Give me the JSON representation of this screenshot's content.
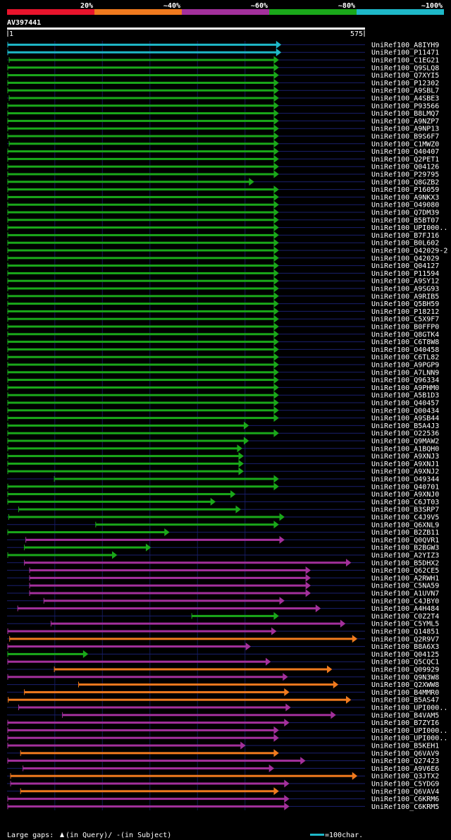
{
  "chart_data": {
    "type": "alignment-overview",
    "identity_legend": [
      {
        "label": "20%",
        "color": "#e8142c"
      },
      {
        "label": "~40%",
        "color": "#f07a1e"
      },
      {
        "label": "~60%",
        "color": "#a3309c"
      },
      {
        "label": "~80%",
        "color": "#1aa81a"
      },
      {
        "label": "~100%",
        "color": "#1eb8c8"
      }
    ],
    "query": {
      "name": "AV397441",
      "start_label": "1",
      "end_label": "575",
      "length": 575
    },
    "hits": [
      {
        "name": "UniRef100_A8IYH9",
        "s": 1,
        "e": 575,
        "id": "~100%"
      },
      {
        "name": "UniRef100_P11471",
        "s": 1,
        "e": 575,
        "id": "~100%"
      },
      {
        "name": "UniRef100_C1EG21",
        "s": 4,
        "e": 570,
        "id": "~80%"
      },
      {
        "name": "UniRef100_Q9SLQ8",
        "s": 1,
        "e": 570,
        "id": "~80%"
      },
      {
        "name": "UniRef100_Q7XYI5",
        "s": 1,
        "e": 570,
        "id": "~80%"
      },
      {
        "name": "UniRef100_P12302",
        "s": 1,
        "e": 570,
        "id": "~80%"
      },
      {
        "name": "UniRef100_A9SBL7",
        "s": 1,
        "e": 570,
        "id": "~80%"
      },
      {
        "name": "UniRef100_A4SBE3",
        "s": 4,
        "e": 570,
        "id": "~80%"
      },
      {
        "name": "UniRef100_P93566",
        "s": 1,
        "e": 570,
        "id": "~80%"
      },
      {
        "name": "UniRef100_B8LMQ7",
        "s": 1,
        "e": 570,
        "id": "~80%"
      },
      {
        "name": "UniRef100_A9NZP7",
        "s": 1,
        "e": 570,
        "id": "~80%"
      },
      {
        "name": "UniRef100_A9NP13",
        "s": 1,
        "e": 570,
        "id": "~80%"
      },
      {
        "name": "UniRef100_B9S6F7",
        "s": 1,
        "e": 570,
        "id": "~80%"
      },
      {
        "name": "UniRef100_C1MWZ0",
        "s": 4,
        "e": 570,
        "id": "~80%"
      },
      {
        "name": "UniRef100_Q40407",
        "s": 1,
        "e": 570,
        "id": "~80%"
      },
      {
        "name": "UniRef100_Q2PET1",
        "s": 1,
        "e": 570,
        "id": "~80%"
      },
      {
        "name": "UniRef100_Q04126",
        "s": 1,
        "e": 570,
        "id": "~80%"
      },
      {
        "name": "UniRef100_P29795",
        "s": 1,
        "e": 570,
        "id": "~80%"
      },
      {
        "name": "UniRef100_Q8GZB2",
        "s": 1,
        "e": 518,
        "id": "~80%"
      },
      {
        "name": "UniRef100_P16059",
        "s": 1,
        "e": 570,
        "id": "~80%"
      },
      {
        "name": "UniRef100_A9NKX3",
        "s": 1,
        "e": 570,
        "id": "~80%"
      },
      {
        "name": "UniRef100_O49080",
        "s": 1,
        "e": 570,
        "id": "~80%"
      },
      {
        "name": "UniRef100_Q7DM39",
        "s": 1,
        "e": 570,
        "id": "~80%"
      },
      {
        "name": "UniRef100_B5BT07",
        "s": 1,
        "e": 570,
        "id": "~80%"
      },
      {
        "name": "UniRef100_UPI000..",
        "s": 1,
        "e": 570,
        "id": "~80%"
      },
      {
        "name": "UniRef100_B7FJ16",
        "s": 1,
        "e": 570,
        "id": "~80%"
      },
      {
        "name": "UniRef100_B0L602",
        "s": 1,
        "e": 570,
        "id": "~80%"
      },
      {
        "name": "UniRef100_Q42029-2",
        "s": 1,
        "e": 570,
        "id": "~80%"
      },
      {
        "name": "UniRef100_Q42029",
        "s": 1,
        "e": 570,
        "id": "~80%"
      },
      {
        "name": "UniRef100_Q04127",
        "s": 1,
        "e": 570,
        "id": "~80%"
      },
      {
        "name": "UniRef100_P11594",
        "s": 1,
        "e": 570,
        "id": "~80%"
      },
      {
        "name": "UniRef100_A9SY12",
        "s": 1,
        "e": 570,
        "id": "~80%"
      },
      {
        "name": "UniRef100_A9SG93",
        "s": 1,
        "e": 570,
        "id": "~80%"
      },
      {
        "name": "UniRef100_A9RIB5",
        "s": 1,
        "e": 570,
        "id": "~80%"
      },
      {
        "name": "UniRef100_Q5BH59",
        "s": 1,
        "e": 570,
        "id": "~80%"
      },
      {
        "name": "UniRef100_P18212",
        "s": 1,
        "e": 570,
        "id": "~80%"
      },
      {
        "name": "UniRef100_C5X9F7",
        "s": 1,
        "e": 570,
        "id": "~80%"
      },
      {
        "name": "UniRef100_B0FFP0",
        "s": 1,
        "e": 570,
        "id": "~80%"
      },
      {
        "name": "UniRef100_Q8GTK4",
        "s": 1,
        "e": 570,
        "id": "~80%"
      },
      {
        "name": "UniRef100_C6T8W8",
        "s": 1,
        "e": 570,
        "id": "~80%"
      },
      {
        "name": "UniRef100_O40458",
        "s": 1,
        "e": 570,
        "id": "~80%"
      },
      {
        "name": "UniRef100_C6TL82",
        "s": 1,
        "e": 570,
        "id": "~80%"
      },
      {
        "name": "UniRef100_A9PGP9",
        "s": 1,
        "e": 570,
        "id": "~80%"
      },
      {
        "name": "UniRef100_A7LNN9",
        "s": 1,
        "e": 570,
        "id": "~80%"
      },
      {
        "name": "UniRef100_Q96334",
        "s": 1,
        "e": 570,
        "id": "~80%"
      },
      {
        "name": "UniRef100_A9PHM0",
        "s": 1,
        "e": 570,
        "id": "~80%"
      },
      {
        "name": "UniRef100_A5B1D3",
        "s": 1,
        "e": 570,
        "id": "~80%"
      },
      {
        "name": "UniRef100_Q40457",
        "s": 1,
        "e": 570,
        "id": "~80%"
      },
      {
        "name": "UniRef100_Q00434",
        "s": 1,
        "e": 570,
        "id": "~80%"
      },
      {
        "name": "UniRef100_A9SB44",
        "s": 1,
        "e": 570,
        "id": "~80%"
      },
      {
        "name": "UniRef100_B5A4J3",
        "s": 1,
        "e": 507,
        "id": "~80%"
      },
      {
        "name": "UniRef100_O22536",
        "s": 1,
        "e": 570,
        "id": "~80%"
      },
      {
        "name": "UniRef100_Q9MAW2",
        "s": 1,
        "e": 507,
        "id": "~80%"
      },
      {
        "name": "UniRef100_A1BQH0",
        "s": 1,
        "e": 493,
        "id": "~80%"
      },
      {
        "name": "UniRef100_A9XNJ3",
        "s": 1,
        "e": 496,
        "id": "~80%"
      },
      {
        "name": "UniRef100_A9XNJ1",
        "s": 1,
        "e": 496,
        "id": "~80%"
      },
      {
        "name": "UniRef100_A9XNJ2",
        "s": 1,
        "e": 496,
        "id": "~80%"
      },
      {
        "name": "UniRef100_O49344",
        "s": 99,
        "e": 570,
        "id": "~80%"
      },
      {
        "name": "UniRef100_Q40701",
        "s": 1,
        "e": 570,
        "id": "~80%"
      },
      {
        "name": "UniRef100_A9XNJ0",
        "s": 1,
        "e": 479,
        "id": "~80%"
      },
      {
        "name": "UniRef100_C6JT03",
        "s": 1,
        "e": 437,
        "id": "~80%"
      },
      {
        "name": "UniRef100_B3SRP7",
        "s": 24,
        "e": 490,
        "id": "~80%"
      },
      {
        "name": "UniRef100_C4J9V5",
        "s": 3,
        "e": 582,
        "id": "~80%"
      },
      {
        "name": "UniRef100_Q6XNL9",
        "s": 186,
        "e": 570,
        "id": "~80%"
      },
      {
        "name": "UniRef100_B2ZB11",
        "s": 1,
        "e": 340,
        "id": "~80%"
      },
      {
        "name": "UniRef100_Q0QVR1",
        "s": 39,
        "e": 582,
        "id": "~60%"
      },
      {
        "name": "UniRef100_B2BGW3",
        "s": 36,
        "e": 301,
        "id": "~80%"
      },
      {
        "name": "UniRef100_A2YIZ3",
        "s": 1,
        "e": 230,
        "id": "~80%"
      },
      {
        "name": "UniRef100_B5DHX2",
        "s": 36,
        "e": 722,
        "id": "~60%"
      },
      {
        "name": "UniRef100_Q62CE5",
        "s": 47,
        "e": 637,
        "id": "~60%"
      },
      {
        "name": "UniRef100_A2RWH1",
        "s": 47,
        "e": 637,
        "id": "~60%"
      },
      {
        "name": "UniRef100_C5NA59",
        "s": 47,
        "e": 637,
        "id": "~60%"
      },
      {
        "name": "UniRef100_A1UVN7",
        "s": 47,
        "e": 637,
        "id": "~60%"
      },
      {
        "name": "UniRef100_C4JBY0",
        "s": 77,
        "e": 582,
        "id": "~60%"
      },
      {
        "name": "UniRef100_A4H484",
        "s": 22,
        "e": 658,
        "id": "~60%"
      },
      {
        "name": "UniRef100_C0Z2T4",
        "s": 388,
        "e": 570,
        "id": "~80%"
      },
      {
        "name": "UniRef100_C5YML5",
        "s": 92,
        "e": 710,
        "id": "~60%"
      },
      {
        "name": "UniRef100_Q14851",
        "s": 1,
        "e": 565,
        "id": "~60%"
      },
      {
        "name": "UniRef100_Q2R9V7",
        "s": 5,
        "e": 735,
        "id": "~40%"
      },
      {
        "name": "UniRef100_B8A6X3",
        "s": 1,
        "e": 511,
        "id": "~60%"
      },
      {
        "name": "UniRef100_Q04125",
        "s": 1,
        "e": 169,
        "id": "~80%"
      },
      {
        "name": "UniRef100_Q5CQC1",
        "s": 1,
        "e": 553,
        "id": "~60%"
      },
      {
        "name": "UniRef100_Q09929",
        "s": 99,
        "e": 682,
        "id": "~40%"
      },
      {
        "name": "UniRef100_Q9N3W8",
        "s": 1,
        "e": 589,
        "id": "~60%"
      },
      {
        "name": "UniRef100_Q2XWW8",
        "s": 150,
        "e": 695,
        "id": "~40%"
      },
      {
        "name": "UniRef100_B4MMR0",
        "s": 36,
        "e": 592,
        "id": "~40%"
      },
      {
        "name": "UniRef100_B5AS47",
        "s": 2,
        "e": 722,
        "id": "~40%"
      },
      {
        "name": "UniRef100_UPI000..",
        "s": 24,
        "e": 595,
        "id": "~60%"
      },
      {
        "name": "UniRef100_B4VAM5",
        "s": 116,
        "e": 690,
        "id": "~60%"
      },
      {
        "name": "UniRef100_B7ZYI6",
        "s": 1,
        "e": 592,
        "id": "~60%"
      },
      {
        "name": "UniRef100_UPI000..",
        "s": 1,
        "e": 570,
        "id": "~60%"
      },
      {
        "name": "UniRef100_UPI000..",
        "s": 1,
        "e": 570,
        "id": "~60%"
      },
      {
        "name": "UniRef100_B5KEH1",
        "s": 1,
        "e": 500,
        "id": "~60%"
      },
      {
        "name": "UniRef100_Q6VAV9",
        "s": 28,
        "e": 570,
        "id": "~40%"
      },
      {
        "name": "UniRef100_Q27423",
        "s": 1,
        "e": 626,
        "id": "~60%"
      },
      {
        "name": "UniRef100_A9V6E6",
        "s": 33,
        "e": 560,
        "id": "~60%"
      },
      {
        "name": "UniRef100_Q3JTX2",
        "s": 7,
        "e": 735,
        "id": "~40%"
      },
      {
        "name": "UniRef100_C5YDG9",
        "s": 7,
        "e": 592,
        "id": "~60%"
      },
      {
        "name": "UniRef100_Q6VAV4",
        "s": 28,
        "e": 570,
        "id": "~40%"
      },
      {
        "name": "UniRef100_C6KRM6",
        "s": 1,
        "e": 592,
        "id": "~60%"
      },
      {
        "name": "UniRef100_C6KRM5",
        "s": 1,
        "e": 592,
        "id": "~60%"
      }
    ]
  },
  "footer": {
    "gaps_prefix": "Large gaps:",
    "gaps_query": "(in Query)/",
    "gaps_subject": "-(in Subject)",
    "scale_text": "=100char.",
    "scale_chars": 100,
    "scale_color": "#1eb8c8"
  }
}
